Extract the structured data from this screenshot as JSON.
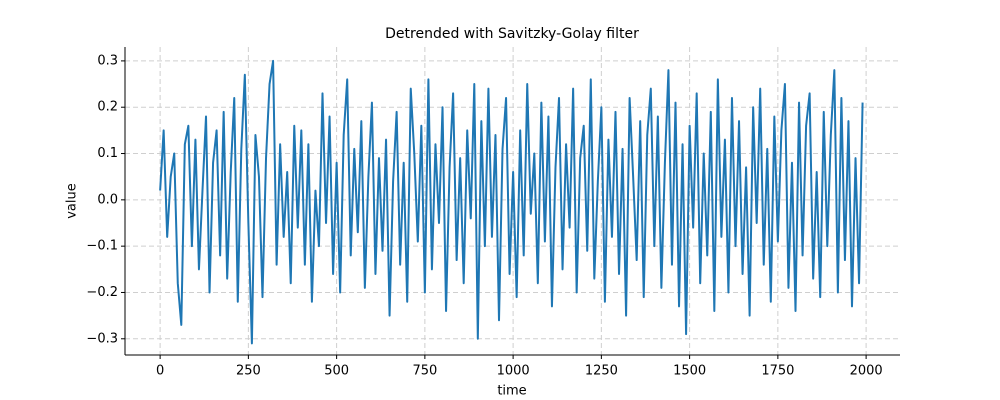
{
  "chart_data": {
    "type": "line",
    "title": "Detrended with Savitzky-Golay filter",
    "xlabel": "time",
    "ylabel": "value",
    "x": [
      0,
      10,
      20,
      30,
      40,
      50,
      60,
      70,
      80,
      90,
      100,
      110,
      120,
      130,
      140,
      150,
      160,
      170,
      180,
      190,
      200,
      210,
      220,
      230,
      240,
      250,
      260,
      270,
      280,
      290,
      300,
      310,
      320,
      330,
      340,
      350,
      360,
      370,
      380,
      390,
      400,
      410,
      420,
      430,
      440,
      450,
      460,
      470,
      480,
      490,
      500,
      510,
      520,
      530,
      540,
      550,
      560,
      570,
      580,
      590,
      600,
      610,
      620,
      630,
      640,
      650,
      660,
      670,
      680,
      690,
      700,
      710,
      720,
      730,
      740,
      750,
      760,
      770,
      780,
      790,
      800,
      810,
      820,
      830,
      840,
      850,
      860,
      870,
      880,
      890,
      900,
      910,
      920,
      930,
      940,
      950,
      960,
      970,
      980,
      990,
      1000,
      1010,
      1020,
      1030,
      1040,
      1050,
      1060,
      1070,
      1080,
      1090,
      1100,
      1110,
      1120,
      1130,
      1140,
      1150,
      1160,
      1170,
      1180,
      1190,
      1200,
      1210,
      1220,
      1230,
      1240,
      1250,
      1260,
      1270,
      1280,
      1290,
      1300,
      1310,
      1320,
      1330,
      1340,
      1350,
      1360,
      1370,
      1380,
      1390,
      1400,
      1410,
      1420,
      1430,
      1440,
      1450,
      1460,
      1470,
      1480,
      1490,
      1500,
      1510,
      1520,
      1530,
      1540,
      1550,
      1560,
      1570,
      1580,
      1590,
      1600,
      1610,
      1620,
      1630,
      1640,
      1650,
      1660,
      1670,
      1680,
      1690,
      1700,
      1710,
      1720,
      1730,
      1740,
      1750,
      1760,
      1770,
      1780,
      1790,
      1800,
      1810,
      1820,
      1830,
      1840,
      1850,
      1860,
      1870,
      1880,
      1890,
      1900,
      1910,
      1920,
      1930,
      1940,
      1950,
      1960,
      1970,
      1980,
      1990
    ],
    "series": [
      {
        "name": "value",
        "color": "#1f77b4",
        "values": [
          0.02,
          0.15,
          -0.08,
          0.05,
          0.1,
          -0.18,
          -0.27,
          0.12,
          0.16,
          -0.1,
          0.13,
          -0.15,
          0.02,
          0.18,
          -0.2,
          0.08,
          0.15,
          -0.12,
          0.19,
          -0.17,
          0.06,
          0.22,
          -0.22,
          0.11,
          0.27,
          -0.05,
          -0.31,
          0.14,
          0.05,
          -0.21,
          0.09,
          0.25,
          0.3,
          -0.14,
          0.12,
          -0.08,
          0.06,
          -0.18,
          0.16,
          -0.06,
          0.15,
          -0.14,
          0.12,
          -0.22,
          0.02,
          -0.1,
          0.23,
          -0.05,
          0.18,
          -0.16,
          0.08,
          -0.2,
          0.14,
          0.26,
          -0.12,
          0.11,
          -0.07,
          0.17,
          -0.19,
          0.05,
          0.21,
          -0.16,
          0.09,
          -0.11,
          0.13,
          -0.25,
          0.04,
          0.19,
          -0.14,
          0.08,
          -0.22,
          0.24,
          0.1,
          -0.09,
          0.16,
          -0.2,
          0.26,
          -0.15,
          0.12,
          -0.05,
          0.2,
          -0.24,
          0.07,
          0.23,
          -0.13,
          0.09,
          -0.18,
          0.15,
          -0.04,
          0.25,
          -0.3,
          0.17,
          -0.1,
          0.24,
          -0.08,
          0.14,
          -0.26,
          0.11,
          0.22,
          -0.16,
          0.06,
          -0.21,
          0.15,
          -0.12,
          0.25,
          -0.03,
          0.1,
          -0.18,
          0.21,
          -0.09,
          0.18,
          -0.23,
          0.07,
          0.22,
          -0.15,
          0.12,
          -0.06,
          0.24,
          -0.2,
          0.09,
          0.16,
          -0.11,
          0.26,
          -0.17,
          0.04,
          0.2,
          -0.22,
          0.13,
          -0.08,
          0.19,
          -0.16,
          0.11,
          -0.25,
          0.22,
          0.05,
          -0.13,
          0.17,
          -0.21,
          0.14,
          0.24,
          -0.1,
          0.18,
          -0.19,
          0.08,
          0.28,
          -0.14,
          0.21,
          -0.23,
          0.12,
          -0.29,
          0.16,
          -0.06,
          0.23,
          -0.18,
          0.1,
          -0.12,
          0.19,
          -0.24,
          0.26,
          -0.08,
          0.13,
          -0.2,
          0.22,
          -0.1,
          0.17,
          -0.16,
          0.07,
          -0.25,
          0.2,
          -0.05,
          0.24,
          -0.14,
          0.11,
          -0.22,
          0.18,
          -0.09,
          0.15,
          0.25,
          -0.19,
          0.08,
          -0.24,
          0.21,
          -0.12,
          0.16,
          0.23,
          -0.17,
          0.06,
          -0.21,
          0.19,
          -0.1,
          0.14,
          0.28,
          -0.2,
          0.22,
          -0.13,
          0.17,
          -0.23,
          0.09,
          -0.18,
          0.21
        ]
      }
    ],
    "xlim": [
      -99.5,
      2096
    ],
    "ylim": [
      -0.335,
      0.33
    ],
    "xticks": [
      0,
      250,
      500,
      750,
      1000,
      1250,
      1500,
      1750,
      2000
    ],
    "yticks": [
      {
        "value": -0.3,
        "label": "−0.3"
      },
      {
        "value": -0.2,
        "label": "−0.2"
      },
      {
        "value": -0.1,
        "label": "−0.1"
      },
      {
        "value": 0,
        "label": "0.0"
      },
      0.1,
      0.2,
      0.3
    ],
    "grid": true
  }
}
